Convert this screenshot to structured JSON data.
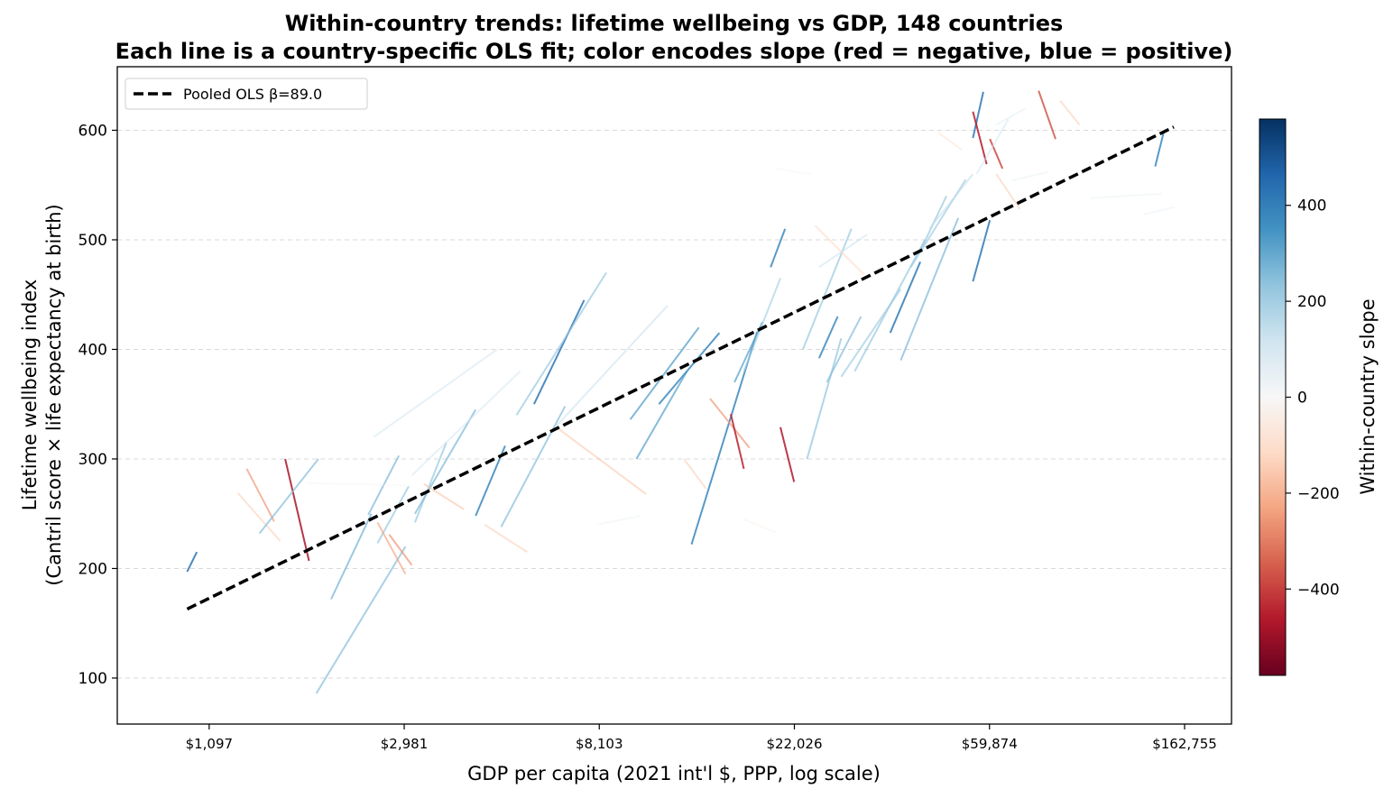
{
  "chart_data": {
    "type": "line",
    "title_line1": "Within-country trends: lifetime wellbeing vs GDP, 148 countries",
    "title_line2": "Each line is a country-specific OLS fit; color encodes slope (red = negative, blue = positive)",
    "xlabel": "GDP per capita (2021 int'l $, PPP, log scale)",
    "ylabel_line1": "Lifetime wellbeing index",
    "ylabel_line2": "(Cantril score × life expectancy at birth)",
    "x_scale": "log",
    "x_ticks": [
      1097,
      2981,
      8103,
      22026,
      59874,
      162755
    ],
    "x_tick_labels": [
      "$1,097",
      "$2,981",
      "$8,103",
      "$22,026",
      "$59,874",
      "$162,755"
    ],
    "xlim": [
      685,
      207000
    ],
    "y_ticks": [
      100,
      200,
      300,
      400,
      500,
      600
    ],
    "y_tick_labels": [
      "100",
      "200",
      "300",
      "400",
      "500",
      "600"
    ],
    "ylim": [
      58,
      658
    ],
    "grid": "horizontal dashed",
    "legend": {
      "placement": "top-left",
      "label": "Pooled OLS  β=89.0"
    },
    "pooled_fit": {
      "x": [
        980,
        154000
      ],
      "y": [
        163,
        603
      ],
      "color": "#000000",
      "style": "dashed"
    },
    "colorbar": {
      "label": "Within-country slope",
      "range": [
        -580,
        580
      ],
      "ticks": [
        -400,
        -200,
        0,
        200,
        400
      ],
      "tick_labels": [
        "−400",
        "−200",
        "0",
        "200",
        "400"
      ],
      "colormap": "RdBu"
    },
    "series": [
      {
        "x": [
          980,
          1030
        ],
        "y": [
          197,
          215
        ],
        "slope": 430
      },
      {
        "x": [
          1330,
          1530
        ],
        "y": [
          291,
          243
        ],
        "slope": -250
      },
      {
        "x": [
          1270,
          1580
        ],
        "y": [
          269,
          225
        ],
        "slope": -150
      },
      {
        "x": [
          1620,
          1830
        ],
        "y": [
          300,
          207
        ],
        "slope": -480
      },
      {
        "x": [
          1420,
          1920
        ],
        "y": [
          232,
          300
        ],
        "slope": 250
      },
      {
        "x": [
          2050,
          2520
        ],
        "y": [
          172,
          250
        ],
        "slope": 270
      },
      {
        "x": [
          1900,
          3000
        ],
        "y": [
          86,
          220
        ],
        "slope": 250
      },
      {
        "x": [
          2480,
          2900
        ],
        "y": [
          249,
          303
        ],
        "slope": 260
      },
      {
        "x": [
          2600,
          3050
        ],
        "y": [
          223,
          275
        ],
        "slope": 230
      },
      {
        "x": [
          2600,
          3000
        ],
        "y": [
          242,
          195
        ],
        "slope": -230
      },
      {
        "x": [
          2760,
          3100
        ],
        "y": [
          231,
          203
        ],
        "slope": -260
      },
      {
        "x": [
          3150,
          3700
        ],
        "y": [
          242,
          315
        ],
        "slope": 230
      },
      {
        "x": [
          3150,
          4300
        ],
        "y": [
          250,
          345
        ],
        "slope": 260
      },
      {
        "x": [
          3300,
          4050
        ],
        "y": [
          277,
          254
        ],
        "slope": -170
      },
      {
        "x": [
          2550,
          4800
        ],
        "y": [
          320,
          400
        ],
        "slope": 120
      },
      {
        "x": [
          3100,
          5400
        ],
        "y": [
          285,
          380
        ],
        "slope": 120
      },
      {
        "x": [
          4300,
          5000
        ],
        "y": [
          248,
          312
        ],
        "slope": 380
      },
      {
        "x": [
          4500,
          5600
        ],
        "y": [
          240,
          215
        ],
        "slope": -150
      },
      {
        "x": [
          4900,
          6800
        ],
        "y": [
          238,
          348
        ],
        "slope": 250
      },
      {
        "x": [
          5800,
          7500
        ],
        "y": [
          350,
          445
        ],
        "slope": 420
      },
      {
        "x": [
          5300,
          8400
        ],
        "y": [
          340,
          470
        ],
        "slope": 230
      },
      {
        "x": [
          6600,
          10300
        ],
        "y": [
          327,
          268
        ],
        "slope": -160
      },
      {
        "x": [
          6500,
          11500
        ],
        "y": [
          330,
          440
        ],
        "slope": 140
      },
      {
        "x": [
          9500,
          13500
        ],
        "y": [
          336,
          420
        ],
        "slope": 310
      },
      {
        "x": [
          9800,
          12700
        ],
        "y": [
          300,
          380
        ],
        "slope": 300
      },
      {
        "x": [
          11000,
          15000
        ],
        "y": [
          350,
          415
        ],
        "slope": 370
      },
      {
        "x": [
          12500,
          14000
        ],
        "y": [
          300,
          273
        ],
        "slope": -150
      },
      {
        "x": [
          13000,
          18200
        ],
        "y": [
          222,
          416
        ],
        "slope": 380
      },
      {
        "x": [
          14300,
          17500
        ],
        "y": [
          355,
          310
        ],
        "slope": -250
      },
      {
        "x": [
          15900,
          17000
        ],
        "y": [
          341,
          291
        ],
        "slope": -450
      },
      {
        "x": [
          16200,
          18700
        ],
        "y": [
          370,
          425
        ],
        "slope": 300
      },
      {
        "x": [
          17000,
          20500
        ],
        "y": [
          380,
          465
        ],
        "slope": 200
      },
      {
        "x": [
          19500,
          21000
        ],
        "y": [
          475,
          510
        ],
        "slope": 380
      },
      {
        "x": [
          20500,
          22000
        ],
        "y": [
          329,
          279
        ],
        "slope": -470
      },
      {
        "x": [
          23500,
          28000
        ],
        "y": [
          300,
          410
        ],
        "slope": 240
      },
      {
        "x": [
          23000,
          29500
        ],
        "y": [
          400,
          510
        ],
        "slope": 230
      },
      {
        "x": [
          25000,
          27500
        ],
        "y": [
          392,
          430
        ],
        "slope": 370
      },
      {
        "x": [
          25000,
          32000
        ],
        "y": [
          475,
          505
        ],
        "slope": 130
      },
      {
        "x": [
          24500,
          31500
        ],
        "y": [
          513,
          468
        ],
        "slope": -130
      },
      {
        "x": [
          26000,
          31000
        ],
        "y": [
          370,
          430
        ],
        "slope": 250
      },
      {
        "x": [
          28000,
          38000
        ],
        "y": [
          375,
          455
        ],
        "slope": 220
      },
      {
        "x": [
          30000,
          43000
        ],
        "y": [
          380,
          500
        ],
        "slope": 230
      },
      {
        "x": [
          36000,
          42000
        ],
        "y": [
          415,
          480
        ],
        "slope": 410
      },
      {
        "x": [
          40000,
          53000
        ],
        "y": [
          475,
          555
        ],
        "slope": 220
      },
      {
        "x": [
          38000,
          51000
        ],
        "y": [
          390,
          520
        ],
        "slope": 260
      },
      {
        "x": [
          42000,
          48000
        ],
        "y": [
          490,
          540
        ],
        "slope": 230
      },
      {
        "x": [
          44000,
          55000
        ],
        "y": [
          510,
          560
        ],
        "slope": 150
      },
      {
        "x": [
          55000,
          60000
        ],
        "y": [
          462,
          518
        ],
        "slope": 420
      },
      {
        "x": [
          55000,
          58000
        ],
        "y": [
          593,
          635
        ],
        "slope": 420
      },
      {
        "x": [
          55000,
          59000
        ],
        "y": [
          617,
          569
        ],
        "slope": -460
      },
      {
        "x": [
          60000,
          64000
        ],
        "y": [
          592,
          565
        ],
        "slope": -380
      },
      {
        "x": [
          62000,
          70000
        ],
        "y": [
          560,
          528
        ],
        "slope": -150
      },
      {
        "x": [
          56000,
          66000
        ],
        "y": [
          560,
          610
        ],
        "slope": 120
      },
      {
        "x": [
          46000,
          52000
        ],
        "y": [
          598,
          582
        ],
        "slope": -100
      },
      {
        "x": [
          77000,
          84000
        ],
        "y": [
          636,
          592
        ],
        "slope": -360
      },
      {
        "x": [
          86000,
          95000
        ],
        "y": [
          627,
          605
        ],
        "slope": -150
      },
      {
        "x": [
          140000,
          146000
        ],
        "y": [
          567,
          597
        ],
        "slope": 380
      },
      {
        "x": [
          132000,
          155000
        ],
        "y": [
          523,
          530
        ],
        "slope": 60
      },
      {
        "x": [
          100000,
          145000
        ],
        "y": [
          538,
          542
        ],
        "slope": 50
      },
      {
        "x": [
          67000,
          81000
        ],
        "y": [
          554,
          562
        ],
        "slope": 60
      },
      {
        "x": [
          62000,
          72000
        ],
        "y": [
          605,
          620
        ],
        "slope": 80
      },
      {
        "x": [
          17000,
          20000
        ],
        "y": [
          245,
          233
        ],
        "slope": -40
      },
      {
        "x": [
          1800,
          3000
        ],
        "y": [
          278,
          276
        ],
        "slope": -20
      },
      {
        "x": [
          8000,
          10000
        ],
        "y": [
          240,
          248
        ],
        "slope": 40
      },
      {
        "x": [
          20000,
          24000
        ],
        "y": [
          565,
          560
        ],
        "slope": -20
      }
    ]
  }
}
